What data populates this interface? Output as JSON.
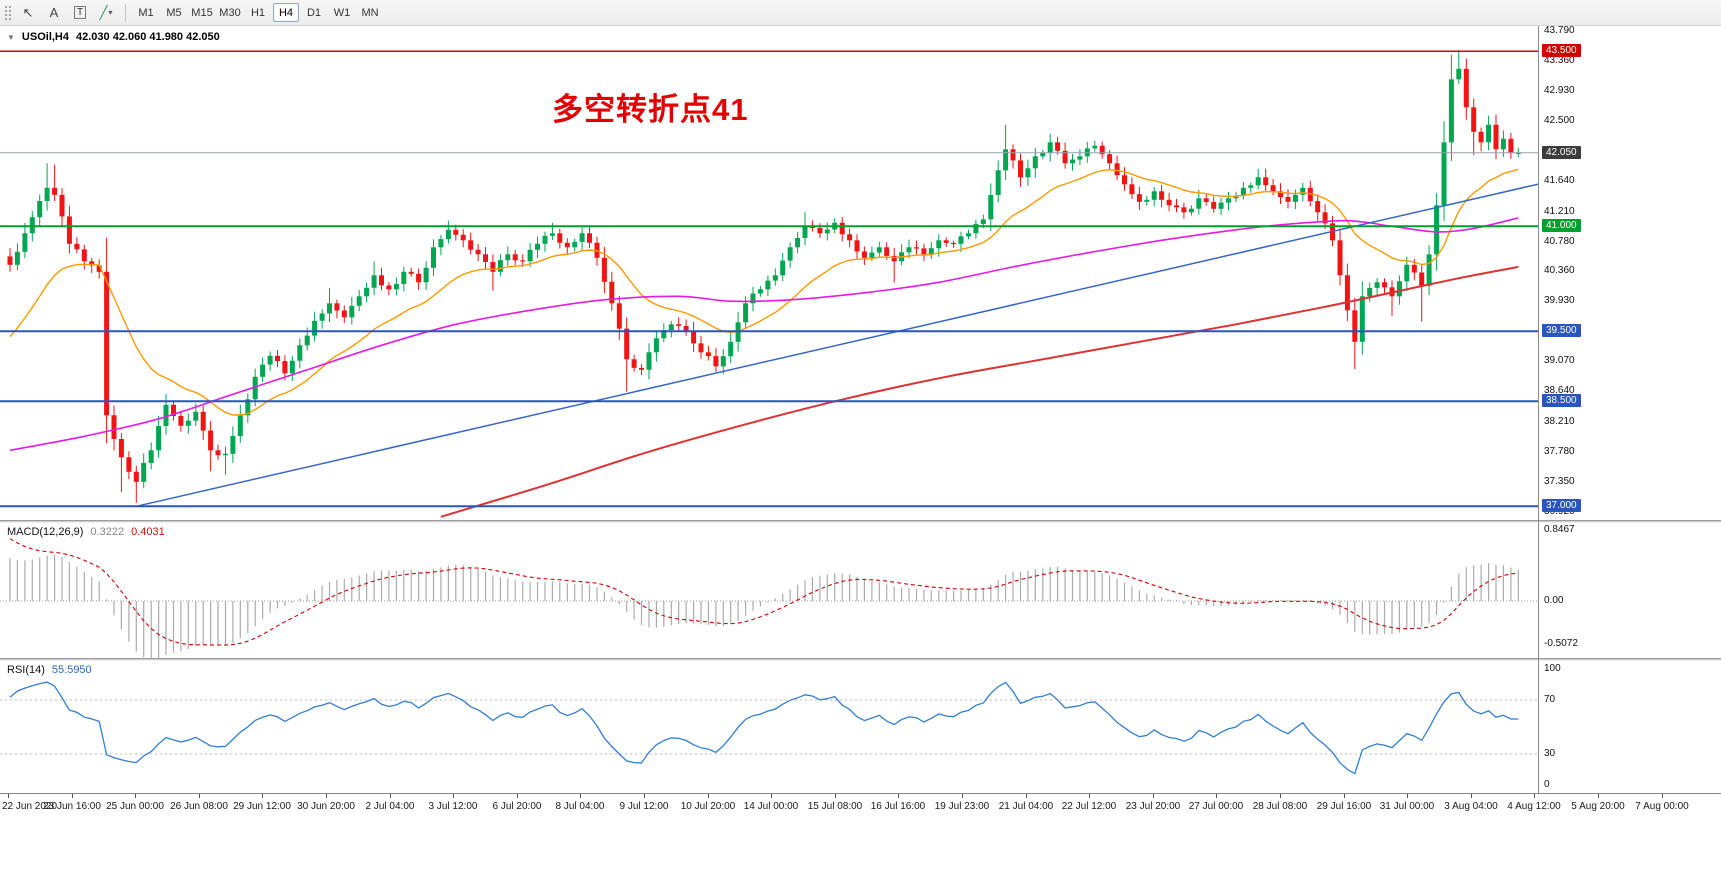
{
  "toolbar": {
    "tools": [
      {
        "name": "cursor-tool",
        "glyph": "↖"
      },
      {
        "name": "text-tool",
        "label": "A"
      },
      {
        "name": "label-tool",
        "label": "T",
        "boxed": true
      },
      {
        "name": "draw-tool",
        "glyph": "╱",
        "glyph_color": "#2e9e4f",
        "caret": true
      }
    ],
    "timeframes": [
      "M1",
      "M5",
      "M15",
      "M30",
      "H1",
      "H4",
      "D1",
      "W1",
      "MN"
    ],
    "active_timeframe": "H4"
  },
  "chart": {
    "symbol_label": "USOil,H4",
    "ohlc": "42.030 42.060 41.980 42.050",
    "annotation": {
      "text": "多空转折点41",
      "color": "#e40000"
    }
  },
  "chart_data": {
    "type": "candlestick",
    "symbol": "USOil",
    "timeframe": "H4",
    "bar_count": 204,
    "price_axis": {
      "min": 36.92,
      "max": 43.79,
      "ticks": [
        "43.790",
        "43.360",
        "42.930",
        "42.500",
        "41.640",
        "41.210",
        "40.780",
        "40.360",
        "39.930",
        "39.070",
        "38.640",
        "38.210",
        "37.780",
        "37.350",
        "36.920"
      ],
      "badges": [
        {
          "label": "43.500",
          "price": 43.5,
          "color": "#d40000"
        },
        {
          "label": "42.050",
          "price": 42.05,
          "color": "#3c3c3c"
        },
        {
          "label": "41.000",
          "price": 41.0,
          "color": "#00a02c"
        },
        {
          "label": "39.500",
          "price": 39.5,
          "color": "#2a55c0"
        },
        {
          "label": "38.500",
          "price": 38.5,
          "color": "#2a55c0"
        },
        {
          "label": "37.000",
          "price": 37.0,
          "color": "#2a55c0"
        }
      ]
    },
    "candles": {
      "up_color": "#00a651",
      "down_color": "#f01414",
      "close_anchors": [
        [
          0,
          40.45,
          null,
          null
        ],
        [
          2,
          40.9,
          null,
          null
        ],
        [
          5,
          41.55,
          41.9,
          null
        ],
        [
          6,
          41.45,
          41.88,
          null
        ],
        [
          8,
          40.75,
          null,
          null
        ],
        [
          10,
          40.5,
          null,
          null
        ],
        [
          12,
          40.35,
          null,
          null
        ],
        [
          13,
          38.3,
          null,
          37.9
        ],
        [
          15,
          37.7,
          null,
          37.2
        ],
        [
          17,
          37.35,
          null,
          37.05
        ],
        [
          19,
          37.8,
          null,
          null
        ],
        [
          21,
          38.45,
          null,
          null
        ],
        [
          23,
          38.15,
          null,
          null
        ],
        [
          25,
          38.35,
          null,
          null
        ],
        [
          27,
          37.8,
          null,
          37.5
        ],
        [
          29,
          37.75,
          null,
          37.45
        ],
        [
          31,
          38.3,
          null,
          null
        ],
        [
          33,
          38.85,
          null,
          null
        ],
        [
          35,
          39.15,
          null,
          null
        ],
        [
          37,
          38.9,
          null,
          null
        ],
        [
          39,
          39.3,
          null,
          null
        ],
        [
          41,
          39.65,
          null,
          null
        ],
        [
          43,
          39.9,
          40.12,
          null
        ],
        [
          45,
          39.7,
          null,
          null
        ],
        [
          47,
          40.0,
          null,
          null
        ],
        [
          49,
          40.3,
          40.5,
          null
        ],
        [
          51,
          40.1,
          null,
          null
        ],
        [
          53,
          40.35,
          null,
          null
        ],
        [
          55,
          40.2,
          null,
          null
        ],
        [
          57,
          40.7,
          null,
          null
        ],
        [
          59,
          40.95,
          41.08,
          null
        ],
        [
          61,
          40.8,
          null,
          null
        ],
        [
          63,
          40.6,
          null,
          null
        ],
        [
          65,
          40.35,
          null,
          40.08
        ],
        [
          67,
          40.6,
          null,
          null
        ],
        [
          69,
          40.5,
          null,
          null
        ],
        [
          71,
          40.75,
          null,
          null
        ],
        [
          73,
          40.9,
          41.05,
          null
        ],
        [
          75,
          40.7,
          null,
          null
        ],
        [
          77,
          40.9,
          null,
          null
        ],
        [
          79,
          40.55,
          null,
          null
        ],
        [
          81,
          39.9,
          null,
          null
        ],
        [
          83,
          39.1,
          null,
          38.64
        ],
        [
          85,
          38.95,
          null,
          null
        ],
        [
          87,
          39.4,
          null,
          null
        ],
        [
          89,
          39.6,
          null,
          null
        ],
        [
          91,
          39.5,
          null,
          null
        ],
        [
          93,
          39.2,
          null,
          null
        ],
        [
          95,
          39.0,
          null,
          38.92
        ],
        [
          97,
          39.35,
          null,
          null
        ],
        [
          99,
          39.9,
          null,
          null
        ],
        [
          101,
          40.1,
          null,
          null
        ],
        [
          103,
          40.3,
          null,
          null
        ],
        [
          105,
          40.7,
          null,
          null
        ],
        [
          107,
          41.0,
          41.2,
          null
        ],
        [
          109,
          40.9,
          null,
          null
        ],
        [
          111,
          41.05,
          null,
          null
        ],
        [
          113,
          40.8,
          null,
          null
        ],
        [
          115,
          40.55,
          null,
          null
        ],
        [
          117,
          40.7,
          null,
          null
        ],
        [
          119,
          40.5,
          null,
          40.2
        ],
        [
          121,
          40.7,
          null,
          null
        ],
        [
          123,
          40.6,
          null,
          null
        ],
        [
          125,
          40.8,
          null,
          null
        ],
        [
          127,
          40.75,
          null,
          null
        ],
        [
          129,
          40.9,
          null,
          null
        ],
        [
          131,
          41.1,
          null,
          null
        ],
        [
          133,
          41.8,
          null,
          null
        ],
        [
          134,
          42.1,
          42.45,
          null
        ],
        [
          136,
          41.7,
          null,
          null
        ],
        [
          138,
          42.0,
          null,
          null
        ],
        [
          140,
          42.2,
          42.32,
          null
        ],
        [
          142,
          41.9,
          null,
          null
        ],
        [
          144,
          42.0,
          null,
          null
        ],
        [
          146,
          42.15,
          null,
          null
        ],
        [
          148,
          41.9,
          null,
          null
        ],
        [
          150,
          41.6,
          null,
          null
        ],
        [
          152,
          41.35,
          null,
          null
        ],
        [
          154,
          41.5,
          null,
          null
        ],
        [
          156,
          41.3,
          null,
          null
        ],
        [
          158,
          41.2,
          null,
          null
        ],
        [
          160,
          41.4,
          null,
          null
        ],
        [
          162,
          41.25,
          null,
          null
        ],
        [
          164,
          41.4,
          null,
          null
        ],
        [
          166,
          41.55,
          null,
          null
        ],
        [
          168,
          41.7,
          41.82,
          null
        ],
        [
          170,
          41.5,
          null,
          null
        ],
        [
          172,
          41.35,
          null,
          null
        ],
        [
          174,
          41.55,
          null,
          null
        ],
        [
          176,
          41.2,
          null,
          null
        ],
        [
          178,
          40.8,
          null,
          null
        ],
        [
          179,
          40.3,
          null,
          null
        ],
        [
          180,
          39.8,
          null,
          null
        ],
        [
          181,
          39.35,
          null,
          38.96
        ],
        [
          182,
          40.0,
          null,
          null
        ],
        [
          184,
          40.2,
          null,
          null
        ],
        [
          186,
          40.0,
          null,
          39.72
        ],
        [
          188,
          40.45,
          null,
          null
        ],
        [
          190,
          40.15,
          null,
          39.64
        ],
        [
          191,
          40.6,
          null,
          null
        ],
        [
          192,
          41.3,
          null,
          null
        ],
        [
          193,
          42.2,
          42.5,
          null
        ],
        [
          194,
          43.1,
          43.45,
          null
        ],
        [
          195,
          43.25,
          43.52,
          null
        ],
        [
          196,
          42.7,
          null,
          null
        ],
        [
          197,
          42.35,
          null,
          42.02
        ],
        [
          198,
          42.2,
          null,
          null
        ],
        [
          199,
          42.45,
          42.58,
          null
        ],
        [
          200,
          42.1,
          null,
          null
        ],
        [
          201,
          42.25,
          null,
          null
        ],
        [
          202,
          42.05,
          null,
          null
        ],
        [
          203,
          42.05,
          null,
          null
        ]
      ]
    },
    "levels": [
      {
        "price": 43.5,
        "color": "#e00000",
        "width": 1.5
      },
      {
        "price": 41.0,
        "color": "#00a02c",
        "width": 2
      },
      {
        "price": 39.5,
        "color": "#2a55c0",
        "width": 2
      },
      {
        "price": 38.5,
        "color": "#2a55c0",
        "width": 2
      },
      {
        "price": 37.0,
        "color": "#2a55c0",
        "width": 2
      }
    ],
    "price_line": {
      "price": 42.05,
      "color": "#95a0b4",
      "width": 1
    },
    "trendline": {
      "from_bar": 17,
      "from_price": 37.0,
      "to_bar": 206,
      "to_price": 41.61,
      "color": "#3565c8",
      "width": 1.5
    },
    "moving_averages": {
      "fast": {
        "type": "ema",
        "period": 18,
        "seed": 39.3,
        "color": "#ff9a00",
        "width": 1.4
      },
      "mid": {
        "color": "#e61ae6",
        "width": 1.6,
        "anchors": [
          [
            0,
            37.8
          ],
          [
            10,
            38.0
          ],
          [
            20,
            38.25
          ],
          [
            30,
            38.6
          ],
          [
            40,
            38.95
          ],
          [
            50,
            39.3
          ],
          [
            60,
            39.6
          ],
          [
            70,
            39.8
          ],
          [
            80,
            39.95
          ],
          [
            90,
            40.0
          ],
          [
            97,
            39.93
          ],
          [
            105,
            39.95
          ],
          [
            115,
            40.05
          ],
          [
            125,
            40.2
          ],
          [
            135,
            40.42
          ],
          [
            145,
            40.62
          ],
          [
            155,
            40.8
          ],
          [
            165,
            40.95
          ],
          [
            172,
            41.03
          ],
          [
            180,
            41.08
          ],
          [
            186,
            41.0
          ],
          [
            192,
            40.92
          ],
          [
            197,
            40.97
          ],
          [
            203,
            41.12
          ]
        ]
      },
      "slow": {
        "color": "#e03030",
        "width": 2,
        "anchors": [
          [
            58,
            36.85
          ],
          [
            72,
            37.3
          ],
          [
            86,
            37.78
          ],
          [
            100,
            38.2
          ],
          [
            113,
            38.55
          ],
          [
            126,
            38.85
          ],
          [
            139,
            39.1
          ],
          [
            152,
            39.35
          ],
          [
            165,
            39.6
          ],
          [
            177,
            39.85
          ],
          [
            188,
            40.1
          ],
          [
            196,
            40.28
          ],
          [
            203,
            40.42
          ]
        ]
      }
    },
    "macd": {
      "label": "MACD(12,26,9)",
      "value_main": "0.3222",
      "value_signal": "0.4031",
      "fast": 12,
      "slow": 26,
      "signal": 9,
      "axis_labels": [
        {
          "v": 0.8467,
          "label": "0.8467"
        },
        {
          "v": 0,
          "label": "0.00"
        },
        {
          "v": -0.5072,
          "label": "-0.5072"
        }
      ],
      "hist_color": "#ababab",
      "signal_color": "#d40000",
      "seed_offset": 0.55,
      "signal_seed": 0.8
    },
    "rsi": {
      "label": "RSI(14)",
      "value": "55.5950",
      "period": 14,
      "color": "#2f7ed8",
      "levels": [
        70,
        30
      ],
      "axis_labels": [
        {
          "v": 100,
          "label": "100"
        },
        {
          "v": 70,
          "label": "70"
        },
        {
          "v": 30,
          "label": "30"
        },
        {
          "v": 0,
          "label": "0"
        }
      ]
    },
    "time_axis": [
      "22 Jun 2020",
      "23 Jun 16:00",
      "25 Jun 00:00",
      "26 Jun 08:00",
      "29 Jun 12:00",
      "30 Jun 20:00",
      "2 Jul 04:00",
      "3 Jul 12:00",
      "6 Jul 20:00",
      "8 Jul 04:00",
      "9 Jul 12:00",
      "10 Jul 20:00",
      "14 Jul 00:00",
      "15 Jul 08:00",
      "16 Jul 16:00",
      "19 Jul 23:00",
      "21 Jul 04:00",
      "22 Jul 12:00",
      "23 Jul 20:00",
      "27 Jul 00:00",
      "28 Jul 08:00",
      "29 Jul 16:00",
      "31 Jul 00:00",
      "3 Aug 04:00",
      "4 Aug 12:00",
      "5 Aug 20:00",
      "7 Aug 00:00"
    ]
  }
}
